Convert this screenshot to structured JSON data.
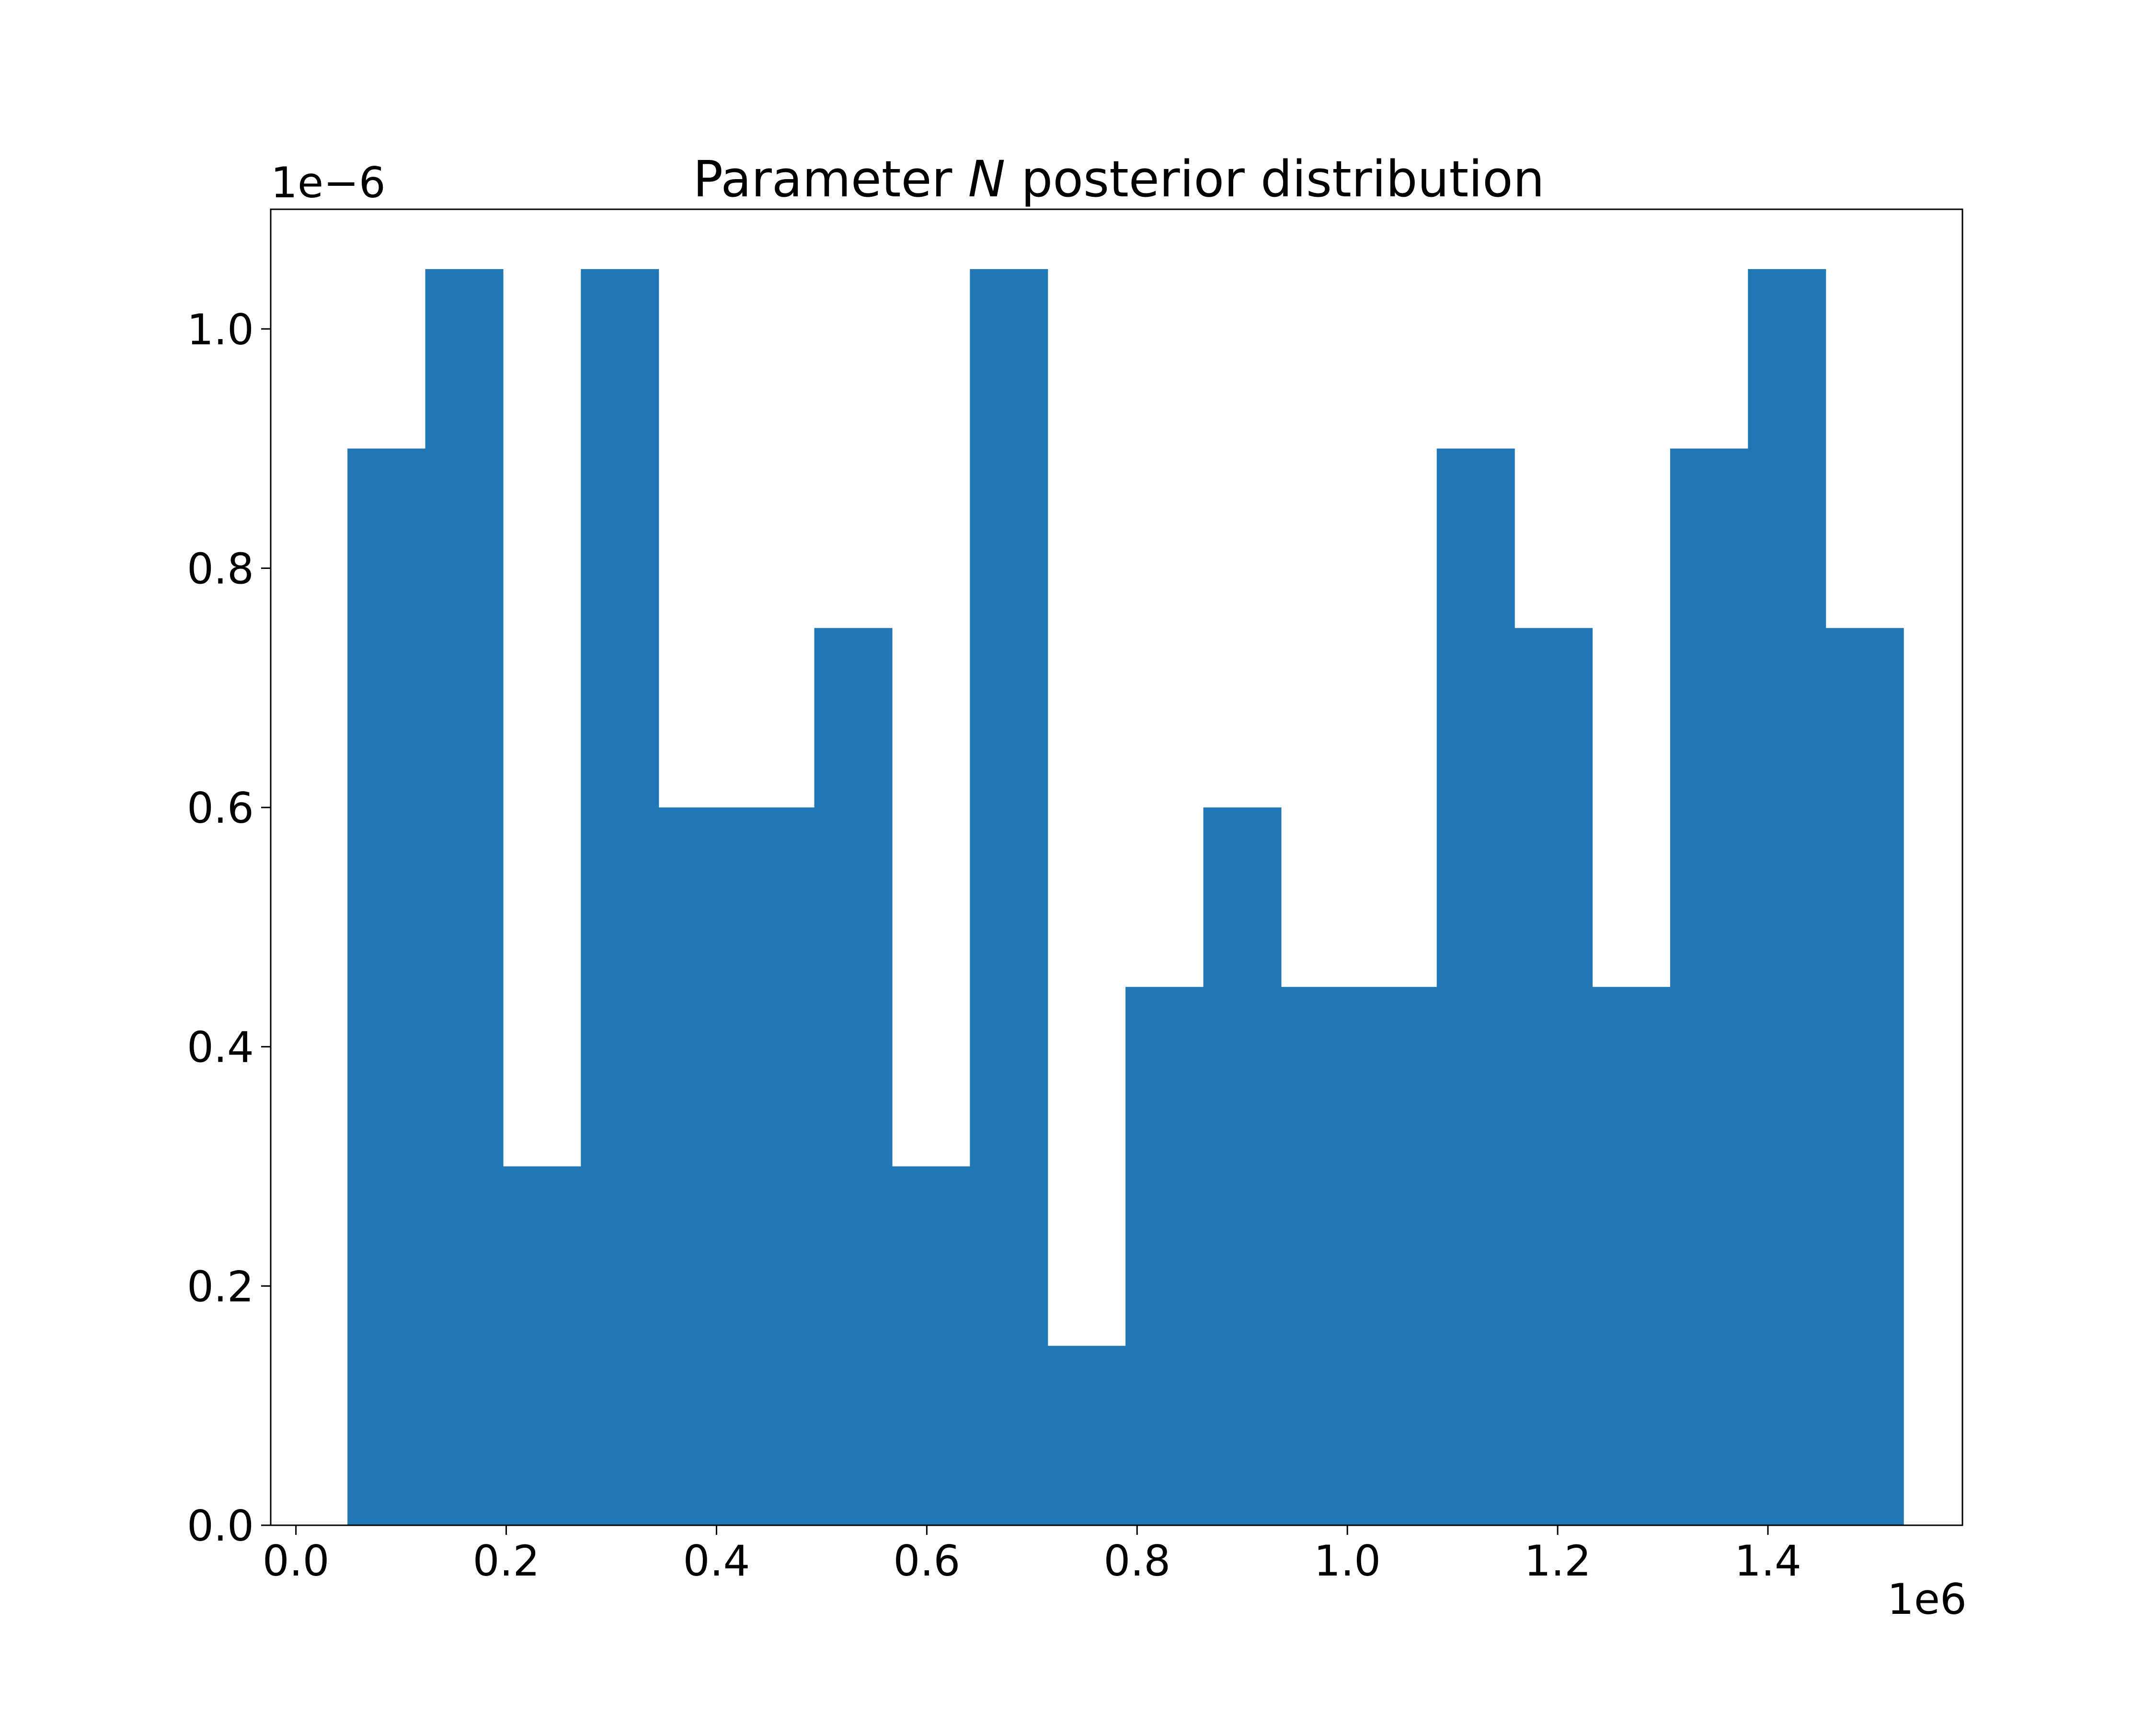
{
  "chart_data": {
    "type": "bar",
    "title_prefix": "Parameter ",
    "title_symbol": "N",
    "title_suffix": " posterior distribution",
    "xlabel": "",
    "ylabel": "",
    "x_offset_label": "1e6",
    "y_offset_label": "1e−6",
    "xlim": [
      -0.024,
      1.585
    ],
    "ylim": [
      0,
      1.1
    ],
    "x_ticks": [
      0.0,
      0.2,
      0.4,
      0.6,
      0.8,
      1.0,
      1.2,
      1.4
    ],
    "x_tick_labels": [
      "0.0",
      "0.2",
      "0.4",
      "0.6",
      "0.8",
      "1.0",
      "1.2",
      "1.4"
    ],
    "y_ticks": [
      0.0,
      0.2,
      0.4,
      0.6,
      0.8,
      1.0
    ],
    "y_tick_labels": [
      "0.0",
      "0.2",
      "0.4",
      "0.6",
      "0.8",
      "1.0"
    ],
    "bin_edges": [
      0.049,
      0.123,
      0.197,
      0.271,
      0.345,
      0.419,
      0.493,
      0.567,
      0.641,
      0.715,
      0.789,
      0.863,
      0.937,
      1.011,
      1.085,
      1.159,
      1.233,
      1.307,
      1.381,
      1.455,
      1.529
    ],
    "values": [
      0.9,
      1.05,
      0.3,
      1.05,
      0.6,
      0.6,
      0.75,
      0.3,
      1.05,
      0.15,
      0.45,
      0.6,
      0.45,
      0.45,
      0.9,
      0.75,
      0.45,
      0.9,
      1.05,
      0.75
    ],
    "bar_color": "#2077b4",
    "grid": false,
    "legend": "none"
  }
}
